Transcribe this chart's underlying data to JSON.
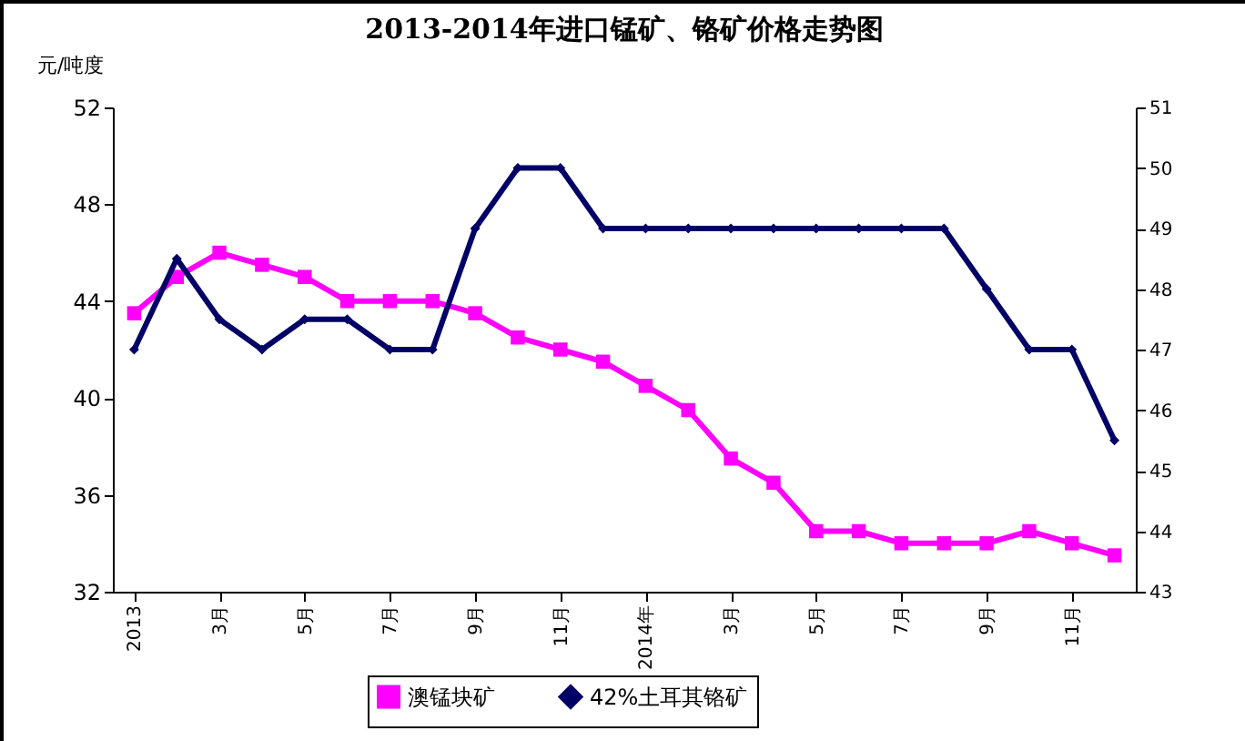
{
  "chart_data": {
    "type": "line",
    "title": "2013-2014年进口锰矿、铬矿价格走势图",
    "ylabel": "元/吨度",
    "categories": [
      "2013",
      null,
      "3月",
      null,
      "5月",
      null,
      "7月",
      null,
      "9月",
      null,
      "11月",
      null,
      "2014年",
      null,
      "3月",
      null,
      "5月",
      null,
      "7月",
      null,
      "9月",
      null,
      "11月",
      null
    ],
    "series": [
      {
        "name": "澳锰块矿",
        "color": "#ff00ff",
        "marker": "square",
        "values": [
          43.5,
          45,
          46,
          45.5,
          45,
          44,
          44,
          44,
          43.5,
          42.5,
          42,
          41.5,
          40.5,
          39.5,
          37.5,
          36.5,
          34.5,
          34.5,
          34,
          34,
          34,
          34.5,
          34,
          33.5
        ]
      },
      {
        "name": "42%土耳其铬矿",
        "color": "#000066",
        "marker": "diamond",
        "axis": "y2",
        "values": [
          47,
          48.5,
          47.5,
          47,
          47.5,
          47.5,
          47,
          47,
          49,
          50,
          50,
          49,
          49,
          49,
          49,
          49,
          49,
          49,
          49,
          49,
          48,
          47,
          47,
          45.5
        ]
      }
    ],
    "ylim": [
      32,
      52
    ],
    "yticks": [
      32,
      36,
      40,
      44,
      48,
      52
    ],
    "y2lim": [
      43,
      51
    ],
    "y2ticks": [
      43,
      44,
      45,
      46,
      47,
      48,
      49,
      50,
      51
    ],
    "grid": false,
    "legend": "bottom",
    "line_style": "solid"
  }
}
